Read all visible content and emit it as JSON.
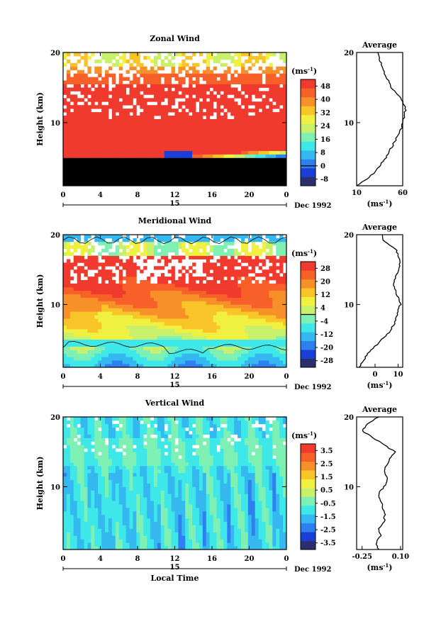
{
  "axis_unit": "(ms",
  "axis_unit_sup": "-1",
  "axis_unit_close": ")",
  "colormap": [
    "#2b2f6e",
    "#1a3fd6",
    "#2f7ff0",
    "#35b8f0",
    "#3ee8e8",
    "#7ff0b4",
    "#c8f06a",
    "#f0f040",
    "#f8c428",
    "#f8902a",
    "#f8602a",
    "#f03a2e"
  ],
  "chart_data": [
    {
      "type": "heatmap",
      "title": "Zonal Wind",
      "ylabel": "Height (km)",
      "y_ticks": [
        "20",
        "10"
      ],
      "ylim": [
        1,
        20
      ],
      "x_ticks": [
        "0",
        "4",
        "8",
        "12",
        "16",
        "20",
        "0"
      ],
      "xlim": [
        0,
        24
      ],
      "date_day": "15",
      "date_label": "Dec 1992",
      "colorbar_ticks": [
        "48",
        "40",
        "32",
        "24",
        "16",
        "8",
        "0",
        "-8"
      ],
      "colorbar_range": [
        -12,
        52
      ],
      "contour_level": "0",
      "profile": {
        "title": "Average",
        "x_ticks": [
          "10",
          "60"
        ],
        "xlim": [
          10,
          60
        ],
        "y_ticks": [
          "20",
          "10"
        ],
        "heights": [
          1,
          2,
          3,
          4,
          5,
          6,
          7,
          8,
          9,
          10,
          11,
          12,
          13,
          14,
          15,
          16,
          17,
          18,
          19,
          20
        ],
        "values": [
          10,
          22,
          30,
          36,
          42,
          46,
          50,
          54,
          58,
          60,
          62,
          63,
          60,
          55,
          48,
          44,
          40,
          38,
          35,
          32
        ]
      }
    },
    {
      "type": "heatmap",
      "title": "Meridional Wind",
      "ylabel": "Height (km)",
      "y_ticks": [
        "20",
        "10"
      ],
      "ylim": [
        1,
        20
      ],
      "x_ticks": [
        "0",
        "4",
        "8",
        "12",
        "16",
        "20",
        "0"
      ],
      "xlim": [
        0,
        24
      ],
      "date_day": "15",
      "date_label": "Dec 1992",
      "colorbar_ticks": [
        "28",
        "20",
        "12",
        "4",
        "-4",
        "-12",
        "-20",
        "-28"
      ],
      "colorbar_range": [
        -32,
        32
      ],
      "contour_level": "0",
      "profile": {
        "title": "Average",
        "x_ticks": [
          "0",
          "10"
        ],
        "xlim": [
          -8,
          12
        ],
        "y_ticks": [
          "20",
          "10"
        ],
        "heights": [
          1,
          2,
          3,
          4,
          5,
          6,
          7,
          8,
          9,
          10,
          11,
          12,
          13,
          14,
          15,
          16,
          17,
          18,
          19,
          20
        ],
        "values": [
          -7,
          -5,
          -3,
          0,
          3,
          6,
          8,
          9,
          10,
          11,
          10,
          9,
          8,
          9,
          10,
          11,
          10,
          9,
          4,
          3
        ]
      }
    },
    {
      "type": "heatmap",
      "title": "Vertical Wind",
      "ylabel": "Height (km)",
      "y_ticks": [
        "20",
        "10"
      ],
      "ylim": [
        1,
        20
      ],
      "x_ticks": [
        "0",
        "4",
        "8",
        "12",
        "16",
        "20",
        "0"
      ],
      "xlim": [
        0,
        24
      ],
      "date_day": "15",
      "date_label": "Dec 1992",
      "xlabel": "Local Time",
      "colorbar_ticks": [
        "3.5",
        "2.5",
        "1.5",
        "0.5",
        "-0.5",
        "-1.5",
        "-2.5",
        "-3.5"
      ],
      "colorbar_range": [
        -4,
        4
      ],
      "profile": {
        "title": "Average",
        "x_ticks": [
          "-0.25",
          "0.10"
        ],
        "xlim": [
          -0.3,
          0.12
        ],
        "y_ticks": [
          "20",
          "10"
        ],
        "heights": [
          1,
          2,
          3,
          4,
          5,
          6,
          7,
          8,
          9,
          10,
          11,
          12,
          13,
          14,
          15,
          16,
          17,
          18,
          19,
          20
        ],
        "values": [
          -0.1,
          -0.12,
          -0.08,
          -0.1,
          -0.05,
          -0.04,
          -0.06,
          -0.08,
          -0.1,
          -0.05,
          -0.02,
          -0.05,
          -0.03,
          0.0,
          0.05,
          -0.05,
          -0.15,
          -0.25,
          -0.2,
          -0.1
        ]
      }
    }
  ]
}
